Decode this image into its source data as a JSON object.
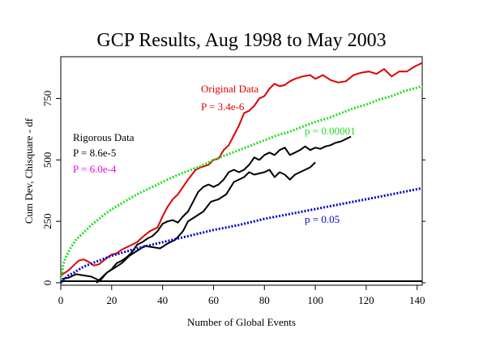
{
  "chart_data": {
    "type": "line",
    "title": "GCP Results, Aug 1998 to May 2003",
    "xlabel": "Number of Global Events",
    "ylabel": "Cum Dev, Chisquare - df",
    "xlim": [
      0,
      142
    ],
    "ylim": [
      -10,
      920
    ],
    "xticks": [
      0,
      20,
      40,
      60,
      80,
      100,
      120,
      140
    ],
    "yticks": [
      0,
      250,
      500,
      750
    ],
    "grid": false,
    "colors": {
      "original": "#dd0000",
      "rigorous": "#000000",
      "rigorous_p": "#ee00ee",
      "p00001": "#22dd22",
      "p05": "#0000cc",
      "axis": "#000000"
    },
    "annotations": {
      "original_label": "Original Data",
      "original_p": "P = 3.4e-6",
      "rigorous_label": "Rigorous Data",
      "rigorous_p_black": "P = 8.6e-5",
      "rigorous_p_magenta": "P = 6.0e-4",
      "p_00001": "p = 0.00001",
      "p_05": "p = 0.05"
    },
    "series": [
      {
        "key": "original",
        "style": "solid",
        "x": [
          0,
          3,
          5,
          7,
          9,
          11,
          13,
          15,
          18,
          20,
          22,
          24,
          27,
          30,
          32,
          35,
          38,
          40,
          42,
          44,
          46,
          48,
          50,
          53,
          55,
          58,
          60,
          62,
          64,
          66,
          68,
          70,
          72,
          74,
          76,
          78,
          80,
          82,
          84,
          86,
          88,
          90,
          92,
          95,
          98,
          100,
          103,
          106,
          109,
          112,
          115,
          118,
          121,
          124,
          127,
          130,
          133,
          136,
          139,
          142
        ],
        "y": [
          30,
          50,
          70,
          90,
          95,
          85,
          70,
          75,
          100,
          115,
          120,
          135,
          150,
          165,
          185,
          210,
          225,
          270,
          310,
          340,
          360,
          390,
          420,
          460,
          470,
          480,
          500,
          505,
          540,
          560,
          600,
          640,
          690,
          700,
          720,
          750,
          760,
          790,
          810,
          800,
          805,
          820,
          830,
          840,
          845,
          830,
          845,
          825,
          815,
          820,
          845,
          855,
          860,
          850,
          870,
          840,
          860,
          860,
          880,
          895
        ]
      },
      {
        "key": "rigorous",
        "style": "solid",
        "x": [
          14,
          16,
          18,
          20,
          22,
          24,
          26,
          28,
          30,
          32,
          34,
          36,
          38,
          40,
          42,
          44,
          46,
          48,
          50,
          52,
          54,
          56,
          58,
          60,
          62,
          64,
          66,
          68,
          70,
          72,
          74,
          76,
          78,
          80,
          82,
          84,
          86,
          88,
          90,
          92,
          94,
          96,
          98,
          100,
          102,
          104,
          106,
          108,
          110,
          112,
          114
        ],
        "y": [
          0,
          15,
          40,
          55,
          80,
          90,
          105,
          125,
          155,
          165,
          180,
          190,
          210,
          240,
          250,
          255,
          245,
          270,
          290,
          330,
          370,
          390,
          400,
          390,
          400,
          420,
          450,
          460,
          450,
          460,
          480,
          510,
          500,
          520,
          530,
          520,
          540,
          550,
          520,
          530,
          540,
          555,
          540,
          550,
          545,
          555,
          560,
          570,
          575,
          585,
          595
        ]
      },
      {
        "key": "magenta",
        "style": "solid",
        "x": [
          0,
          3,
          6,
          9,
          12,
          15,
          18,
          21,
          24,
          27,
          30,
          33,
          36,
          39,
          42,
          45,
          48,
          50,
          53,
          56,
          59,
          62,
          65,
          68,
          70,
          72,
          74,
          76,
          78,
          80,
          82,
          84,
          86,
          88,
          90,
          92,
          94,
          96,
          98,
          100
        ],
        "y": [
          15,
          20,
          35,
          30,
          25,
          10,
          40,
          60,
          80,
          110,
          130,
          150,
          145,
          140,
          160,
          175,
          210,
          250,
          270,
          290,
          330,
          340,
          360,
          410,
          420,
          430,
          450,
          440,
          445,
          450,
          460,
          430,
          450,
          440,
          420,
          440,
          450,
          460,
          470,
          490
        ]
      },
      {
        "key": "p00001",
        "style": "dotted",
        "x": [
          0,
          1,
          2,
          3,
          4,
          6,
          8,
          10,
          12,
          15,
          18,
          21,
          25,
          30,
          35,
          40,
          45,
          50,
          55,
          60,
          65,
          70,
          75,
          80,
          85,
          90,
          95,
          100,
          105,
          110,
          115,
          120,
          125,
          130,
          135,
          142
        ],
        "y": [
          0,
          75,
          105,
          125,
          145,
          175,
          195,
          215,
          235,
          260,
          285,
          305,
          330,
          360,
          385,
          410,
          435,
          455,
          475,
          500,
          520,
          540,
          560,
          580,
          600,
          615,
          635,
          655,
          670,
          690,
          710,
          725,
          745,
          760,
          780,
          800
        ]
      },
      {
        "key": "p05",
        "style": "dotted",
        "x": [
          0,
          1,
          2,
          3,
          5,
          8,
          10,
          15,
          20,
          25,
          30,
          40,
          50,
          60,
          70,
          80,
          90,
          100,
          110,
          120,
          130,
          142
        ],
        "y": [
          0,
          10,
          20,
          30,
          40,
          60,
          70,
          90,
          110,
          125,
          140,
          165,
          190,
          215,
          235,
          260,
          280,
          300,
          320,
          340,
          360,
          385
        ]
      }
    ]
  }
}
